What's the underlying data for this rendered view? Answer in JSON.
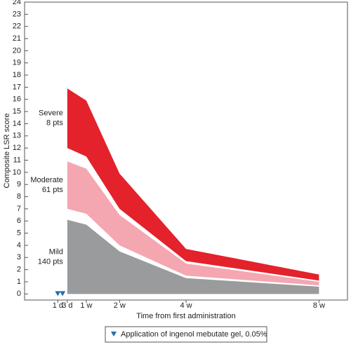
{
  "chart_data": {
    "type": "band",
    "y_label": "Composite LSR score",
    "x_label": "Time from first administration",
    "x": [
      3,
      7,
      14,
      28,
      56
    ],
    "xlim": [
      -6,
      62
    ],
    "xticks": [
      {
        "value": 1,
        "label": "1 d"
      },
      {
        "value": 3,
        "label": "3 d"
      },
      {
        "value": 7,
        "label": "1 w"
      },
      {
        "value": 14,
        "label": "2 w"
      },
      {
        "value": 28,
        "label": "4 w"
      },
      {
        "value": 56,
        "label": "8 w"
      }
    ],
    "ylim": [
      -0.5,
      24
    ],
    "yticks": [
      0,
      1,
      2,
      3,
      4,
      5,
      6,
      7,
      8,
      9,
      10,
      11,
      12,
      13,
      14,
      15,
      16,
      17,
      18,
      19,
      20,
      21,
      22,
      23,
      24
    ],
    "series": [
      {
        "name": "Mild",
        "count": "140 pts",
        "color": "#9a9b9d",
        "lower": [
          0,
          0,
          0,
          0,
          0
        ],
        "upper": [
          6.1,
          5.7,
          3.5,
          1.3,
          0.6
        ]
      },
      {
        "name": "Moderate",
        "count": "61 pts",
        "color": "#f4a7b1",
        "lower": [
          7.0,
          6.6,
          4.0,
          1.5,
          0.7
        ],
        "upper": [
          10.9,
          10.3,
          6.5,
          2.5,
          1.0
        ]
      },
      {
        "name": "Severe",
        "count": "8 pts",
        "color": "#e3222b",
        "lower": [
          12.0,
          11.3,
          7.0,
          2.7,
          1.1
        ],
        "upper": [
          16.9,
          15.9,
          9.9,
          3.7,
          1.6
        ]
      }
    ],
    "markers": {
      "x": [
        1,
        2
      ],
      "color": "#1f6fa8",
      "label": "Application of ingenol mebutate gel, 0.05%"
    }
  }
}
